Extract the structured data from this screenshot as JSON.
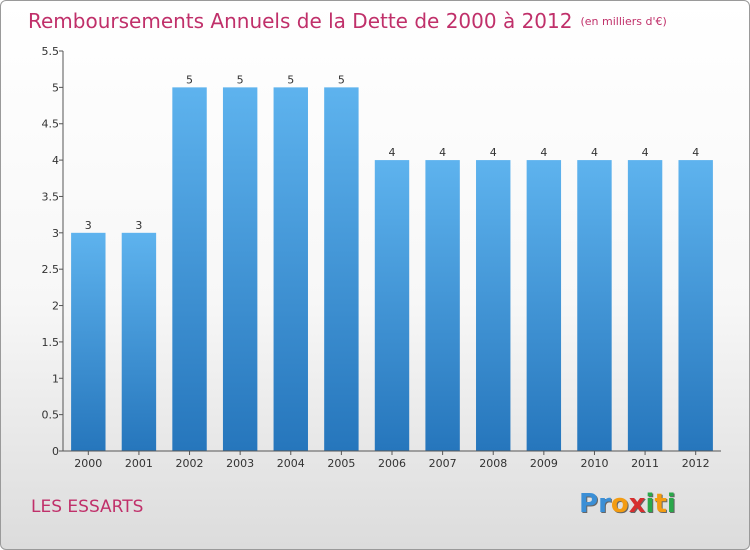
{
  "chart_data": {
    "type": "bar",
    "title": "Remboursements Annuels de la Dette de 2000 à 2012",
    "subtitle": "(en milliers d'€)",
    "categories": [
      "2000",
      "2001",
      "2002",
      "2003",
      "2004",
      "2005",
      "2006",
      "2007",
      "2008",
      "2009",
      "2010",
      "2011",
      "2012"
    ],
    "values": [
      3,
      3,
      5,
      5,
      5,
      5,
      4,
      4,
      4,
      4,
      4,
      4,
      4
    ],
    "data_labels": [
      "3",
      "3",
      "5",
      "5",
      "5",
      "5",
      "4",
      "4",
      "4",
      "4",
      "4",
      "4",
      "4"
    ],
    "ylim": [
      0,
      5.5
    ],
    "yticks": [
      "0",
      "0.5",
      "1",
      "1.5",
      "2",
      "2.5",
      "3",
      "3.5",
      "4",
      "4.5",
      "5",
      "5.5"
    ],
    "grid": false,
    "colors": {
      "bar_light": "#5aaeea",
      "bar_dark": "#2a7fc4",
      "title": "#c0306a"
    }
  },
  "footer": {
    "commune": "LES ESSARTS",
    "logo_letters": [
      "P",
      "r",
      "o",
      "x",
      "i",
      "t",
      "i"
    ],
    "logo_colors": [
      "#3b8fd6",
      "#3b8fd6",
      "#f39c12",
      "#d62f2f",
      "#2aa84a",
      "#f39c12",
      "#2aa84a"
    ]
  }
}
